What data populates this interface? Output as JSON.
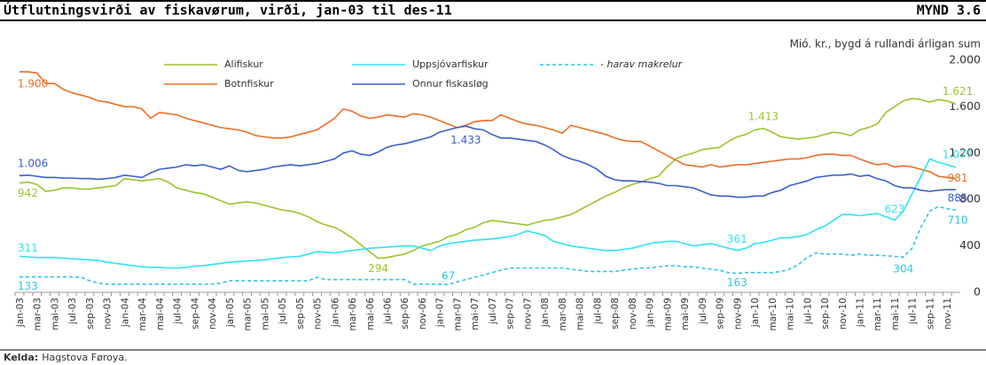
{
  "chart_data": {
    "type": "line",
    "title": "Útflutningsvirði av fiskavørum, virði, jan-03 til des-11",
    "figure_label": "MYND 3.6",
    "unit_label": "Mió. kr., bygd á rullandi árligan sum",
    "source_label": "Kelda:",
    "source": "Hagstova Føroya.",
    "categories": [
      "jan-03",
      null,
      "mar-03",
      null,
      "mai-03",
      null,
      "jul-03",
      null,
      "sep-03",
      null,
      "nov-03",
      null,
      "jan-04",
      null,
      "mar-04",
      null,
      "mai-04",
      null,
      "jul-04",
      null,
      "sep-04",
      null,
      "nov-04",
      null,
      "jan-05",
      null,
      "mar-05",
      null,
      "mai-05",
      null,
      "jul-05",
      null,
      "sep-05",
      null,
      "nov-05",
      null,
      "jan-06",
      null,
      "mar-06",
      null,
      "mai-06",
      null,
      "jul-06",
      null,
      "sep-06",
      null,
      "nov-06",
      null,
      "jan-07",
      null,
      "mar-07",
      null,
      "mai-07",
      null,
      "jul-07",
      null,
      "sep-07",
      null,
      "nov-07",
      null,
      "jan-08",
      null,
      "mar-08",
      null,
      "mai-08",
      null,
      "jul-08",
      null,
      "sep-08",
      null,
      "nov-08",
      null,
      "jan-09",
      null,
      "mar-09",
      null,
      "mai-09",
      null,
      "jul-09",
      null,
      "sep-09",
      null,
      "nov-09",
      null,
      "jan-10",
      null,
      "mar-10",
      null,
      "mai-10",
      null,
      "jul-10",
      null,
      "sep-10",
      null,
      "nov-10",
      null,
      "jan-11",
      null,
      "mar-11",
      null,
      "mai-11",
      null,
      "jul-11",
      null,
      "sep-11",
      null,
      "nov-11",
      null
    ],
    "series": [
      {
        "name": "Alifiskur",
        "color": "#9cc42c",
        "dash": false,
        "values": [
          942,
          950,
          930,
          870,
          880,
          900,
          900,
          890,
          890,
          900,
          910,
          920,
          980,
          970,
          960,
          970,
          980,
          950,
          900,
          880,
          860,
          850,
          820,
          790,
          760,
          770,
          780,
          770,
          750,
          730,
          710,
          700,
          680,
          650,
          610,
          580,
          560,
          520,
          470,
          410,
          350,
          294,
          300,
          315,
          330,
          360,
          400,
          420,
          440,
          480,
          500,
          540,
          560,
          600,
          620,
          610,
          600,
          590,
          580,
          600,
          620,
          630,
          650,
          670,
          710,
          750,
          790,
          830,
          860,
          900,
          930,
          950,
          980,
          1000,
          1080,
          1150,
          1180,
          1200,
          1230,
          1240,
          1250,
          1300,
          1340,
          1360,
          1400,
          1413,
          1380,
          1340,
          1330,
          1320,
          1330,
          1340,
          1360,
          1380,
          1370,
          1350,
          1400,
          1420,
          1450,
          1550,
          1600,
          1650,
          1670,
          1660,
          1640,
          1660,
          1650,
          1621
        ],
        "value_labels": [
          "942",
          null,
          null,
          null,
          null,
          null,
          null,
          null,
          null,
          null,
          null,
          null,
          null,
          null,
          null,
          null,
          null,
          null,
          null,
          null,
          null,
          null,
          null,
          null,
          null,
          null,
          null,
          null,
          null,
          null,
          null,
          null,
          null,
          null,
          null,
          null,
          null,
          null,
          null,
          null,
          null,
          "294",
          null,
          null,
          null,
          null,
          null,
          null,
          null,
          null,
          null,
          null,
          null,
          null,
          null,
          null,
          null,
          null,
          null,
          null,
          null,
          null,
          null,
          null,
          null,
          null,
          null,
          null,
          null,
          null,
          null,
          null,
          null,
          null,
          null,
          null,
          null,
          null,
          null,
          null,
          null,
          null,
          null,
          null,
          null,
          "1.413",
          null,
          null,
          null,
          null,
          null,
          null,
          null,
          null,
          null,
          null,
          null,
          null,
          null,
          null,
          null,
          null,
          null,
          null,
          null,
          null,
          null,
          "1.621"
        ]
      },
      {
        "name": "Botnfiskur",
        "color": "#ea6f24",
        "dash": false,
        "values": [
          1900,
          1900,
          1890,
          1800,
          1800,
          1750,
          1720,
          1700,
          1680,
          1650,
          1640,
          1620,
          1600,
          1600,
          1580,
          1500,
          1550,
          1540,
          1530,
          1500,
          1480,
          1460,
          1440,
          1420,
          1410,
          1400,
          1380,
          1350,
          1340,
          1330,
          1330,
          1340,
          1360,
          1380,
          1400,
          1450,
          1500,
          1580,
          1560,
          1520,
          1500,
          1510,
          1530,
          1520,
          1510,
          1540,
          1530,
          1510,
          1480,
          1450,
          1420,
          1440,
          1470,
          1480,
          1480,
          1530,
          1500,
          1470,
          1450,
          1440,
          1420,
          1400,
          1370,
          1440,
          1420,
          1400,
          1380,
          1360,
          1330,
          1310,
          1300,
          1300,
          1260,
          1220,
          1180,
          1140,
          1100,
          1090,
          1080,
          1100,
          1080,
          1090,
          1100,
          1100,
          1110,
          1120,
          1130,
          1140,
          1150,
          1150,
          1160,
          1180,
          1190,
          1190,
          1180,
          1180,
          1150,
          1120,
          1100,
          1110,
          1080,
          1090,
          1080,
          1060,
          1040,
          1000,
          990,
          981
        ],
        "value_labels": [
          "1.900",
          null,
          null,
          null,
          null,
          null,
          null,
          null,
          null,
          null,
          null,
          null,
          null,
          null,
          null,
          null,
          null,
          null,
          null,
          null,
          null,
          null,
          null,
          null,
          null,
          null,
          null,
          null,
          null,
          null,
          null,
          null,
          null,
          null,
          null,
          null,
          null,
          null,
          null,
          null,
          null,
          null,
          null,
          null,
          null,
          null,
          null,
          null,
          null,
          null,
          null,
          null,
          null,
          null,
          null,
          null,
          null,
          null,
          null,
          null,
          null,
          null,
          null,
          null,
          null,
          null,
          null,
          null,
          null,
          null,
          null,
          null,
          null,
          null,
          null,
          null,
          null,
          null,
          null,
          null,
          null,
          null,
          null,
          null,
          null,
          null,
          null,
          null,
          null,
          null,
          null,
          null,
          null,
          null,
          null,
          null,
          null,
          null,
          null,
          null,
          null,
          null,
          null,
          null,
          null,
          null,
          null,
          "981"
        ]
      },
      {
        "name": "Uppsjóvarfiskur",
        "color": "#2fe3ee",
        "dash": false,
        "values": [
          311,
          305,
          300,
          300,
          300,
          295,
          290,
          285,
          280,
          275,
          260,
          250,
          240,
          230,
          220,
          215,
          215,
          210,
          210,
          215,
          225,
          230,
          240,
          250,
          260,
          265,
          270,
          275,
          280,
          290,
          300,
          305,
          310,
          330,
          350,
          345,
          340,
          350,
          360,
          370,
          380,
          385,
          390,
          395,
          400,
          400,
          380,
          360,
          400,
          420,
          430,
          440,
          450,
          455,
          460,
          470,
          480,
          500,
          530,
          510,
          490,
          440,
          420,
          400,
          390,
          380,
          370,
          360,
          360,
          370,
          380,
          400,
          420,
          430,
          440,
          440,
          420,
          400,
          410,
          420,
          400,
          380,
          361,
          380,
          420,
          430,
          450,
          470,
          470,
          480,
          500,
          540,
          570,
          620,
          670,
          670,
          660,
          670,
          680,
          650,
          623,
          700,
          850,
          1000,
          1150,
          1120,
          1100,
          1077
        ],
        "value_labels": [
          "311",
          null,
          null,
          null,
          null,
          null,
          null,
          null,
          null,
          null,
          null,
          null,
          null,
          null,
          null,
          null,
          null,
          null,
          null,
          null,
          null,
          null,
          null,
          null,
          null,
          null,
          null,
          null,
          null,
          null,
          null,
          null,
          null,
          null,
          null,
          null,
          null,
          null,
          null,
          null,
          null,
          null,
          null,
          null,
          null,
          null,
          null,
          null,
          null,
          null,
          null,
          null,
          null,
          null,
          null,
          null,
          null,
          null,
          null,
          null,
          null,
          null,
          null,
          null,
          null,
          null,
          null,
          null,
          null,
          null,
          null,
          null,
          null,
          null,
          null,
          null,
          null,
          null,
          null,
          null,
          null,
          null,
          "361",
          null,
          null,
          null,
          null,
          null,
          null,
          null,
          null,
          null,
          null,
          null,
          null,
          null,
          null,
          null,
          null,
          null,
          "623",
          null,
          null,
          null,
          null,
          null,
          null,
          "1.077"
        ]
      },
      {
        "name": "Onnur fiskasløg",
        "color": "#3a5fcd",
        "dash": false,
        "values": [
          1006,
          1010,
          1000,
          990,
          990,
          985,
          985,
          980,
          980,
          975,
          980,
          990,
          1010,
          1000,
          990,
          1030,
          1060,
          1070,
          1080,
          1100,
          1090,
          1100,
          1080,
          1060,
          1090,
          1050,
          1040,
          1050,
          1060,
          1080,
          1090,
          1100,
          1090,
          1100,
          1110,
          1130,
          1150,
          1200,
          1220,
          1190,
          1180,
          1210,
          1250,
          1270,
          1280,
          1300,
          1320,
          1340,
          1380,
          1400,
          1420,
          1433,
          1410,
          1400,
          1360,
          1330,
          1330,
          1320,
          1310,
          1300,
          1270,
          1230,
          1180,
          1150,
          1130,
          1100,
          1060,
          1000,
          970,
          960,
          960,
          955,
          950,
          940,
          920,
          920,
          910,
          900,
          870,
          840,
          830,
          830,
          820,
          820,
          830,
          830,
          860,
          880,
          920,
          940,
          960,
          990,
          1000,
          1010,
          1010,
          1020,
          1000,
          1010,
          980,
          960,
          920,
          900,
          900,
          880,
          870,
          880,
          885,
          885
        ],
        "value_labels": [
          "1.006",
          null,
          null,
          null,
          null,
          null,
          null,
          null,
          null,
          null,
          null,
          null,
          null,
          null,
          null,
          null,
          null,
          null,
          null,
          null,
          null,
          null,
          null,
          null,
          null,
          null,
          null,
          null,
          null,
          null,
          null,
          null,
          null,
          null,
          null,
          null,
          null,
          null,
          null,
          null,
          null,
          null,
          null,
          null,
          null,
          null,
          null,
          null,
          null,
          null,
          null,
          "1.433",
          null,
          null,
          null,
          null,
          null,
          null,
          null,
          null,
          null,
          null,
          null,
          null,
          null,
          null,
          null,
          null,
          null,
          null,
          null,
          null,
          null,
          null,
          null,
          null,
          null,
          null,
          null,
          null,
          null,
          null,
          null,
          null,
          null,
          null,
          null,
          null,
          null,
          null,
          null,
          null,
          null,
          null,
          null,
          null,
          null,
          null,
          null,
          null,
          null,
          null,
          null,
          null,
          null,
          null,
          null,
          "885"
        ]
      },
      {
        "name": "- harav makrelur",
        "color": "#2cc6e6",
        "dash": true,
        "values": [
          133,
          133,
          133,
          133,
          133,
          133,
          133,
          130,
          100,
          80,
          70,
          70,
          70,
          70,
          70,
          70,
          70,
          70,
          70,
          70,
          70,
          70,
          70,
          80,
          100,
          100,
          100,
          100,
          100,
          100,
          100,
          100,
          100,
          100,
          130,
          110,
          110,
          110,
          110,
          110,
          110,
          110,
          110,
          110,
          110,
          70,
          70,
          70,
          70,
          67,
          90,
          110,
          130,
          150,
          170,
          190,
          210,
          210,
          210,
          210,
          210,
          210,
          210,
          200,
          190,
          180,
          180,
          180,
          180,
          190,
          200,
          210,
          210,
          220,
          230,
          230,
          220,
          220,
          210,
          200,
          190,
          170,
          163,
          170,
          170,
          170,
          170,
          180,
          200,
          240,
          300,
          340,
          330,
          330,
          330,
          320,
          330,
          320,
          320,
          315,
          310,
          304,
          380,
          560,
          700,
          740,
          720,
          710
        ],
        "value_labels": [
          "133",
          null,
          null,
          null,
          null,
          null,
          null,
          null,
          null,
          null,
          null,
          null,
          null,
          null,
          null,
          null,
          null,
          null,
          null,
          null,
          null,
          null,
          null,
          null,
          null,
          null,
          null,
          null,
          null,
          null,
          null,
          null,
          null,
          null,
          null,
          null,
          null,
          null,
          null,
          null,
          null,
          null,
          null,
          null,
          null,
          null,
          null,
          null,
          null,
          "67",
          null,
          null,
          null,
          null,
          null,
          null,
          null,
          null,
          null,
          null,
          null,
          null,
          null,
          null,
          null,
          null,
          null,
          null,
          null,
          null,
          null,
          null,
          null,
          null,
          null,
          null,
          null,
          null,
          null,
          null,
          null,
          null,
          "163",
          null,
          null,
          null,
          null,
          null,
          null,
          null,
          null,
          null,
          null,
          null,
          null,
          null,
          null,
          null,
          null,
          null,
          null,
          "304",
          null,
          null,
          null,
          null,
          null,
          "710"
        ]
      }
    ],
    "ylim": [
      0,
      2000
    ],
    "yticks": [
      0,
      400,
      800,
      {
        "value": 1200,
        "label": "1.200"
      },
      {
        "value": 1600,
        "label": "1.600"
      },
      {
        "value": 2000,
        "label": "2.000"
      }
    ],
    "grid": false
  }
}
